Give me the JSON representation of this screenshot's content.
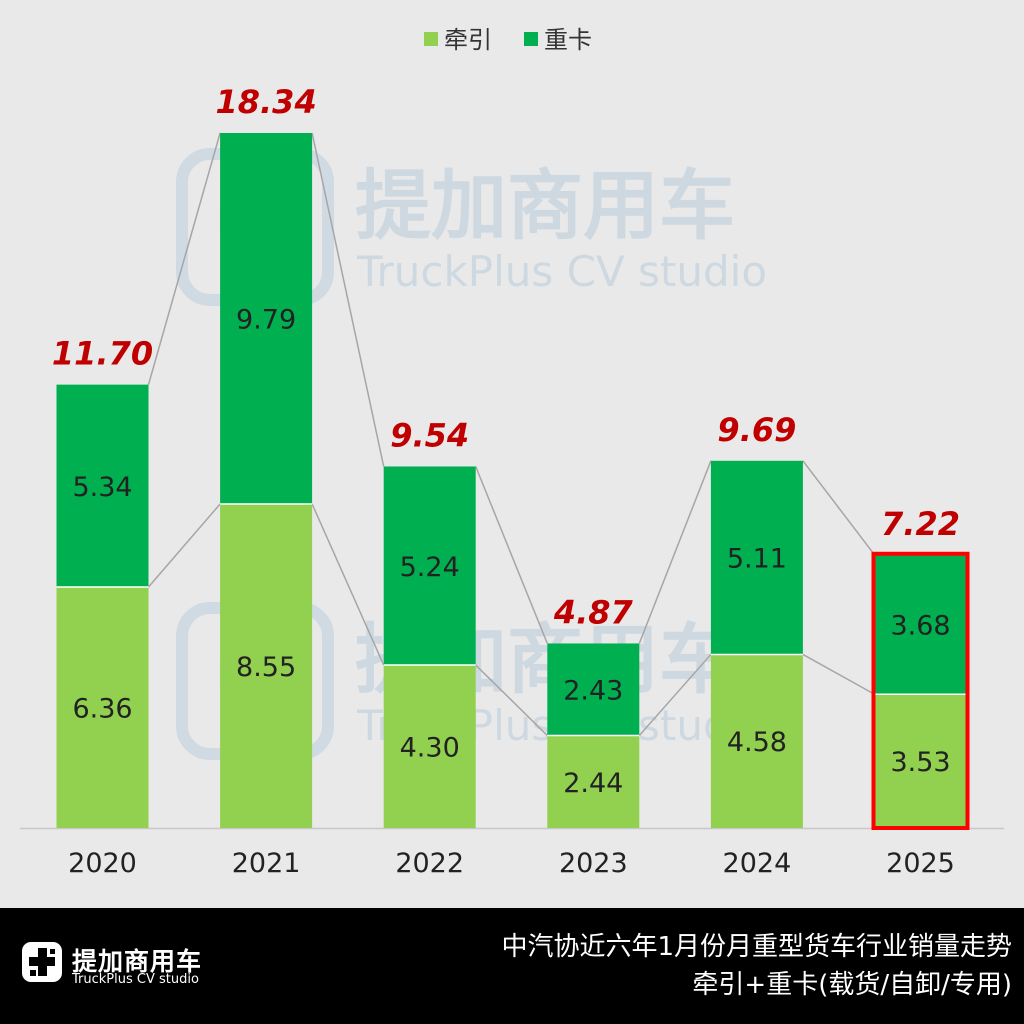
{
  "chart_data": {
    "type": "bar",
    "stacked": true,
    "categories": [
      "2020",
      "2021",
      "2022",
      "2023",
      "2024",
      "2025"
    ],
    "series": [
      {
        "name": "牵引",
        "color": "#92d050",
        "values": [
          6.36,
          8.55,
          4.3,
          2.44,
          4.58,
          3.53
        ],
        "labels": [
          "6.36",
          "8.55",
          "4.30",
          "2.44",
          "4.58",
          "3.53"
        ]
      },
      {
        "name": "重卡",
        "color": "#00b050",
        "values": [
          5.34,
          9.79,
          5.24,
          2.43,
          5.11,
          3.68
        ],
        "labels": [
          "5.34",
          "9.79",
          "5.24",
          "2.43",
          "5.11",
          "3.68"
        ]
      }
    ],
    "totals": [
      "11.70",
      "18.34",
      "9.54",
      "4.87",
      "9.69",
      "7.22"
    ],
    "highlight_category": "2025",
    "highlight_color": "#ff0000",
    "total_label_color": "#c00000",
    "legend_position": "top-center",
    "ylim": [
      0,
      18.34
    ],
    "grid": false,
    "title": "",
    "xlabel": "",
    "ylabel": ""
  },
  "watermark": {
    "name": "提加商用车",
    "sub": "TruckPlus CV studio"
  },
  "footer": {
    "brand_name": "提加商用车",
    "brand_sub": "TruckPlus CV studio",
    "caption_line1": "中汽协近六年1月份月重型货车行业销量走势",
    "caption_line2": "牵引+重卡(载货/自卸/专用)"
  }
}
